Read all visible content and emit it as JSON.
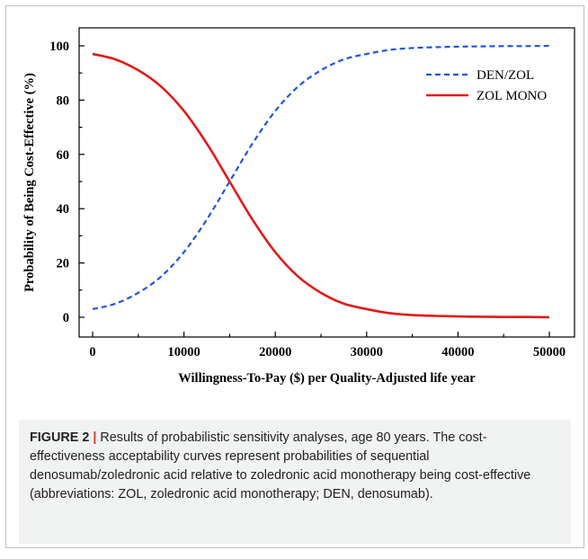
{
  "chart_data": {
    "type": "line",
    "title": "",
    "xlabel": "Willingness-To-Pay ($) per Quality-Adjusted life year",
    "ylabel": "Probability of Being Cost-Effective  (%)",
    "xlim": [
      0,
      50000
    ],
    "ylim": [
      0,
      100
    ],
    "xticks": [
      0,
      10000,
      20000,
      30000,
      40000,
      50000
    ],
    "yticks": [
      0,
      20,
      40,
      60,
      80,
      100
    ],
    "xtick_labels": [
      "0",
      "10000",
      "20000",
      "30000",
      "40000",
      "50000"
    ],
    "ytick_labels": [
      "0",
      "20",
      "40",
      "60",
      "80",
      "100"
    ],
    "grid": false,
    "legend_position": "top-right",
    "x": [
      0,
      2500,
      5000,
      7500,
      10000,
      12500,
      15000,
      17500,
      20000,
      22500,
      25000,
      27500,
      30000,
      32500,
      35000,
      37500,
      40000,
      42500,
      45000,
      47500,
      50000
    ],
    "series": [
      {
        "name": "DEN/ZOL",
        "style": "dashed",
        "color": "#2255dd",
        "values": [
          3,
          5,
          9,
          15,
          24,
          36,
          50,
          64,
          76,
          85,
          91,
          95,
          97,
          98.5,
          99.2,
          99.5,
          99.7,
          99.8,
          99.9,
          99.9,
          100
        ]
      },
      {
        "name": "ZOL MONO",
        "style": "solid",
        "color": "#e01b1b",
        "values": [
          97,
          95,
          91,
          85,
          76,
          64,
          50,
          36,
          24,
          15,
          9,
          5,
          3,
          1.5,
          0.8,
          0.5,
          0.3,
          0.2,
          0.1,
          0.1,
          0
        ]
      }
    ]
  },
  "caption": {
    "label": "FIGURE 2",
    "separator": "|",
    "text": "Results of probabilistic sensitivity analyses, age 80 years. The cost-effectiveness acceptability curves represent probabilities of sequential denosumab/zoledronic acid relative to zoledronic acid monotherapy being cost-effective (abbreviations: ZOL, zoledronic acid monotherapy; DEN, denosumab)."
  }
}
